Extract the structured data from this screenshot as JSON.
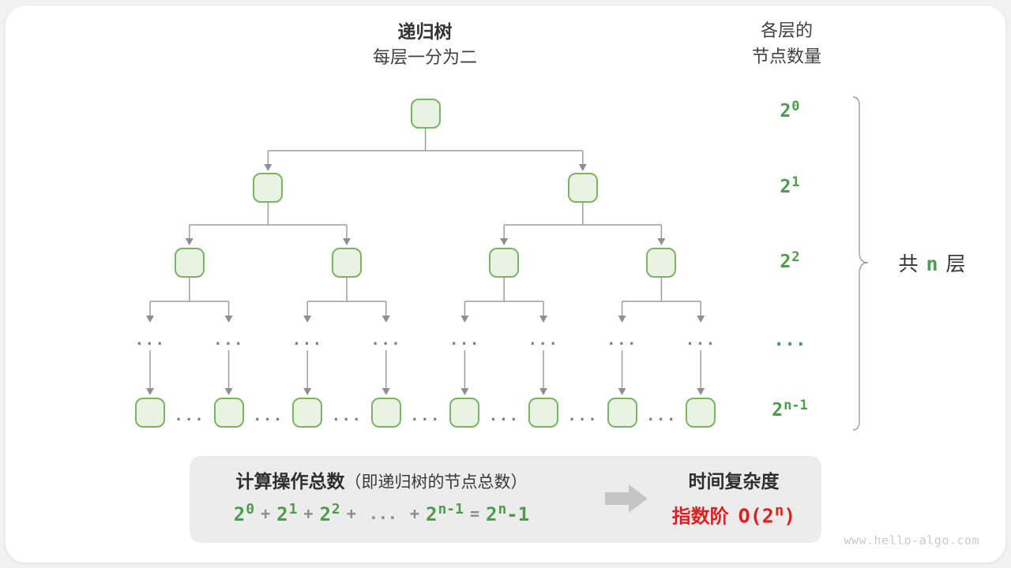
{
  "header": {
    "title": "递归树",
    "subtitle": "每层一分为二",
    "right_title_line1": "各层的",
    "right_title_line2": "节点数量"
  },
  "tree": {
    "dots": "...",
    "levels": [
      {
        "nodes": 1,
        "label": {
          "base": "2",
          "sup": "0"
        }
      },
      {
        "nodes": 2,
        "label": {
          "base": "2",
          "sup": "1"
        }
      },
      {
        "nodes": 4,
        "label": {
          "base": "2",
          "sup": "2"
        }
      },
      {
        "nodes": 8,
        "type": "dots",
        "label": {
          "base": "..."
        }
      },
      {
        "nodes": 8,
        "label": {
          "base": "2",
          "sup": "n-1"
        }
      }
    ],
    "brace_label": {
      "prefix": "共",
      "n": "n",
      "suffix": "层"
    }
  },
  "summary": {
    "ops_title_bold": "计算操作总数",
    "ops_title_paren": "（即递归树的节点总数）",
    "formula_tokens": [
      {
        "t": "pow",
        "base": "2",
        "sup": "0"
      },
      {
        "t": "op",
        "text": "+"
      },
      {
        "t": "pow",
        "base": "2",
        "sup": "1"
      },
      {
        "t": "op",
        "text": "+"
      },
      {
        "t": "pow",
        "base": "2",
        "sup": "2"
      },
      {
        "t": "op",
        "text": "+"
      },
      {
        "t": "op",
        "text": "..."
      },
      {
        "t": "op",
        "text": "+"
      },
      {
        "t": "pow",
        "base": "2",
        "sup": "n-1"
      },
      {
        "t": "op",
        "text": "="
      },
      {
        "t": "pow",
        "base": "2",
        "sup": "n",
        "suffix": "-1"
      }
    ],
    "result_title": "时间复杂度",
    "result_prefix": "指数阶",
    "result_big_o": {
      "base": "O(2",
      "sup": "n",
      "suffix": ")"
    }
  },
  "watermark": "www.hello-algo.com",
  "colors": {
    "page_bg": "#f2f2f2",
    "card_bg": "#ffffff",
    "text_dark": "#333333",
    "green_text": "#4e9b4f",
    "node_fill": "#e9f3e2",
    "node_border": "#7cb465",
    "line_gray": "#9e9e9e",
    "arrowhead_gray": "#8f8f8f",
    "dots_gray": "#7f7f7f",
    "box_bg": "#ececec",
    "big_arrow_gray": "#c5c5c5",
    "red": "#e02020",
    "watermark_gray": "#cacaca"
  }
}
